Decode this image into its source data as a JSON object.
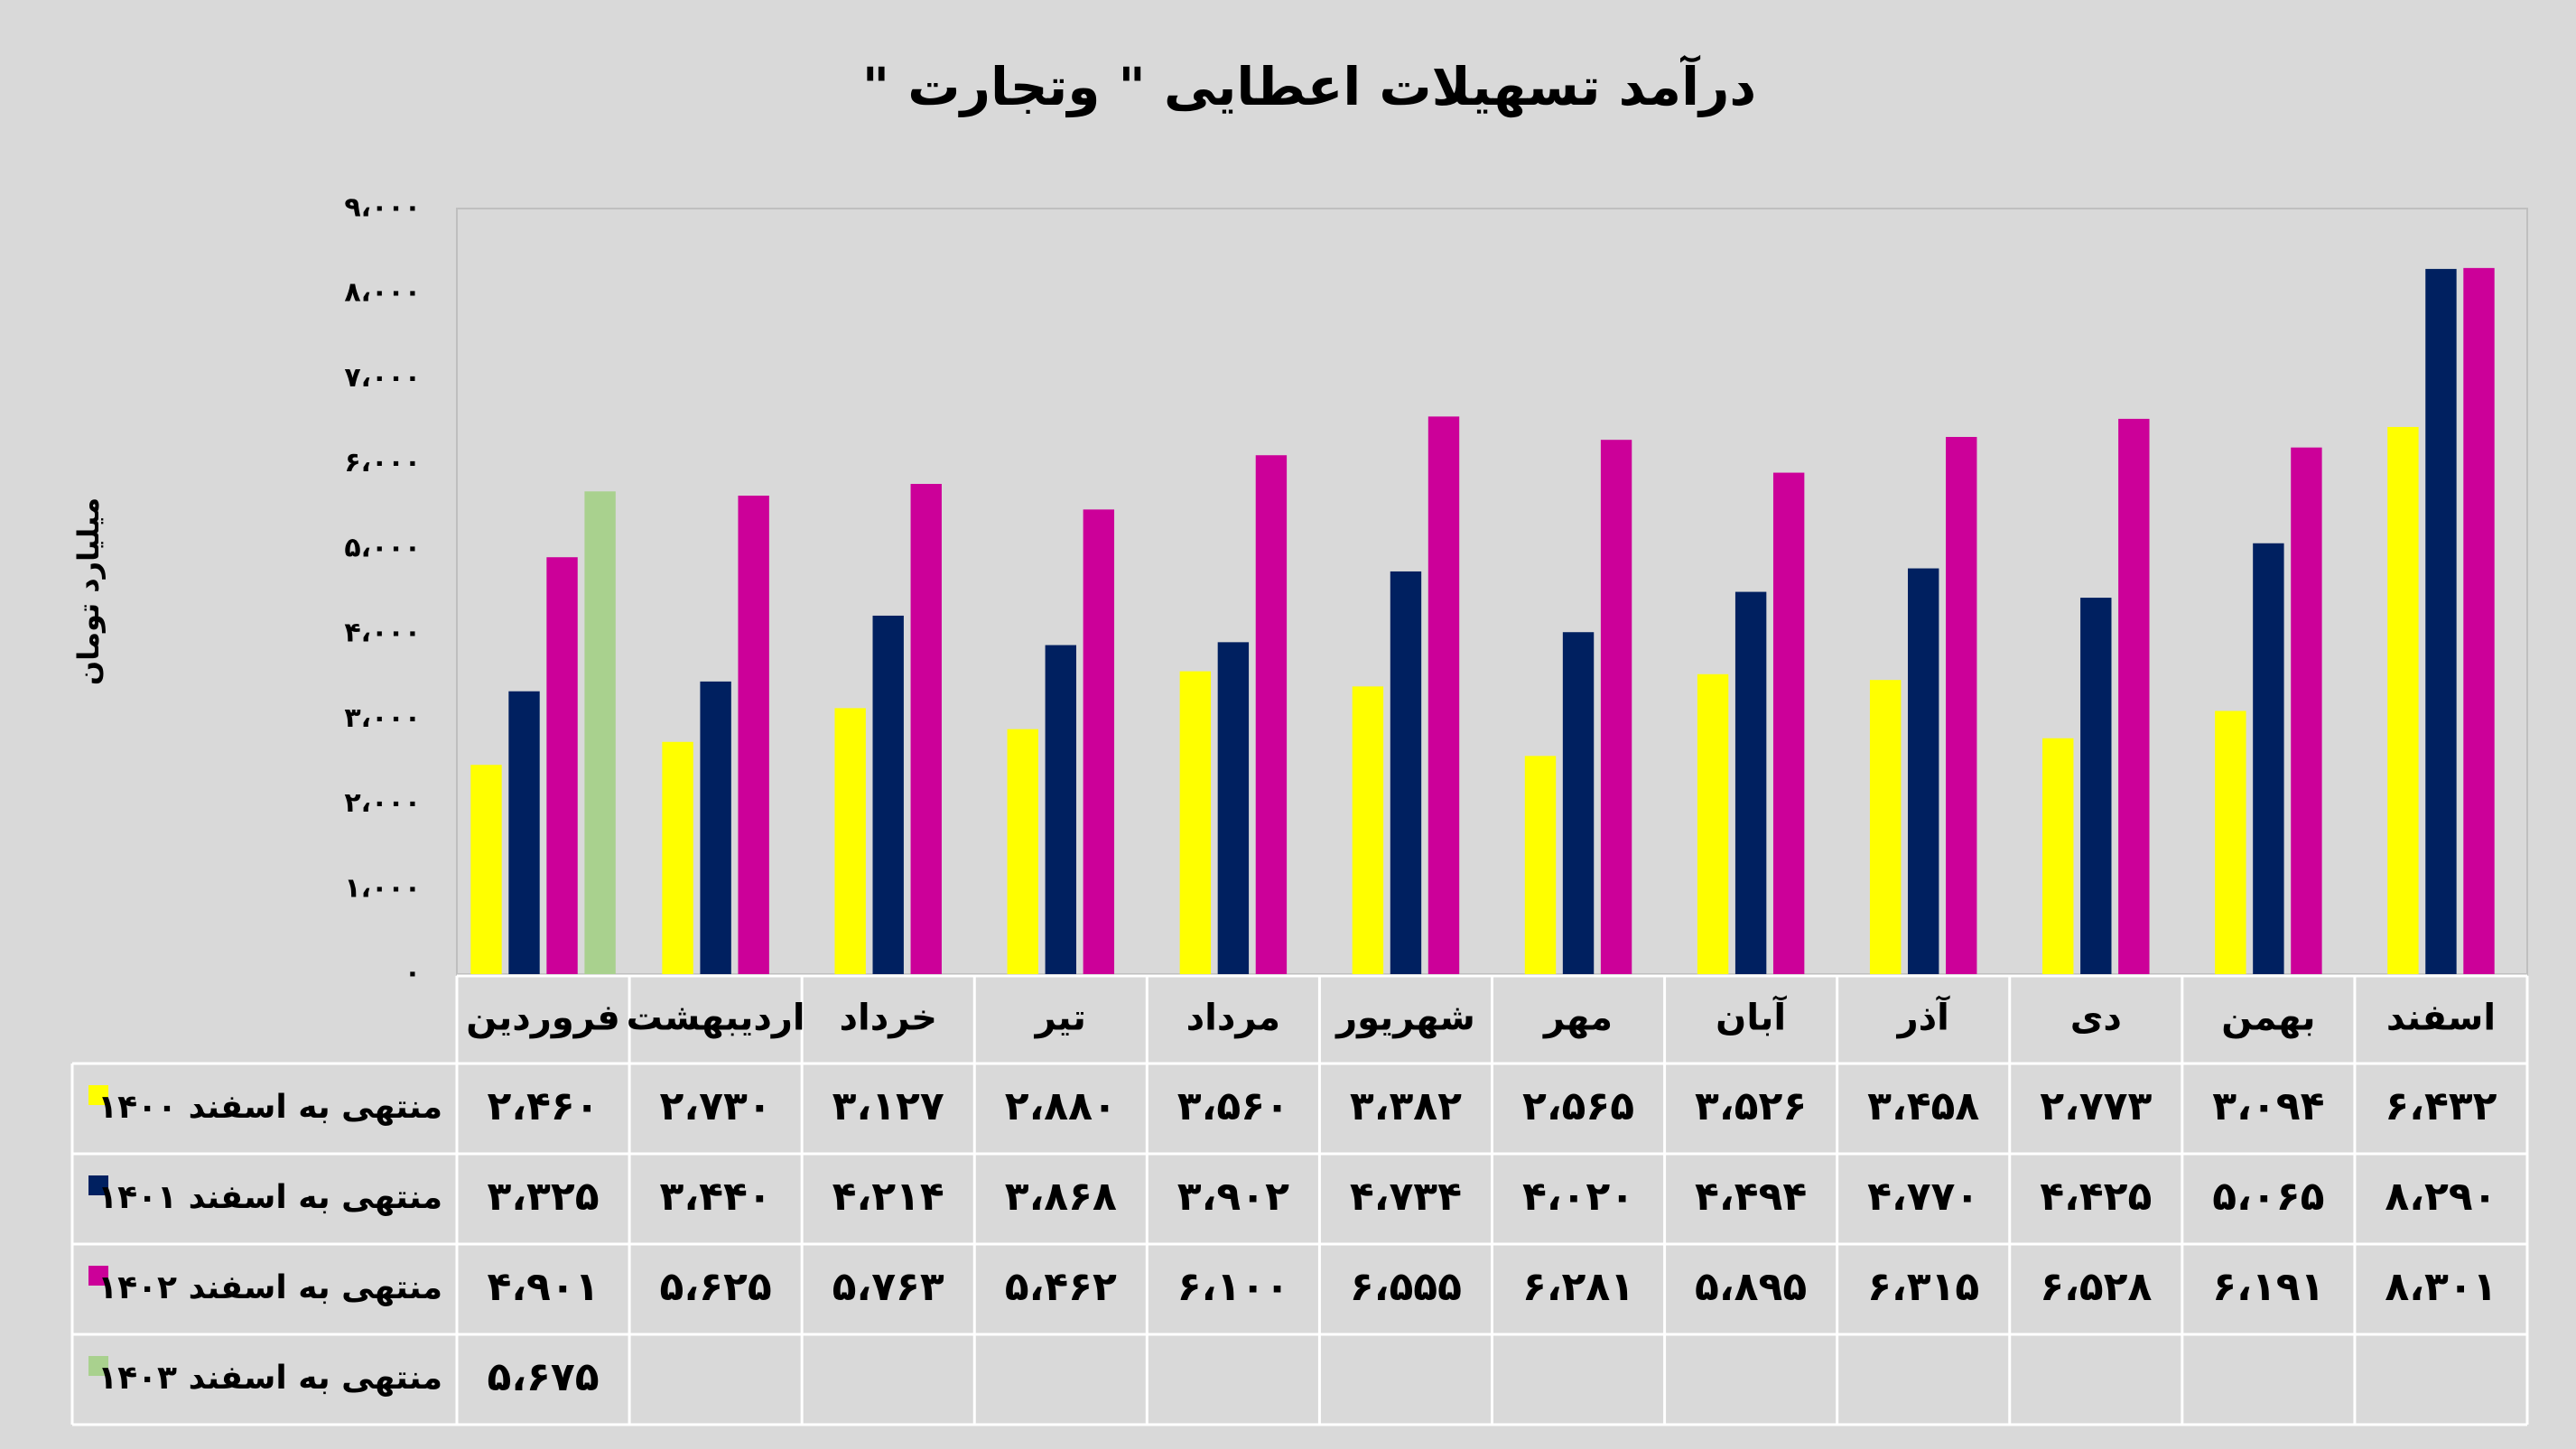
{
  "chart_data": {
    "type": "bar",
    "title": "درآمد تسهیلات اعطایی \" وتجارت \"",
    "y_label": "میلیارد تومان",
    "categories": [
      "فروردین",
      "اردیبهشت",
      "خرداد",
      "تیر",
      "مرداد",
      "شهریور",
      "مهر",
      "آبان",
      "آذر",
      "دی",
      "بهمن",
      "اسفند"
    ],
    "series": [
      {
        "name": "منتهی به اسفند ۱۴۰۰",
        "color": "#ffff00",
        "values": [
          2460,
          2730,
          3127,
          2880,
          3560,
          3382,
          2565,
          3526,
          3458,
          2773,
          3094,
          6432
        ],
        "value_labels": [
          "۲،۴۶۰",
          "۲،۷۳۰",
          "۳،۱۲۷",
          "۲،۸۸۰",
          "۳،۵۶۰",
          "۳،۳۸۲",
          "۲،۵۶۵",
          "۳،۵۲۶",
          "۳،۴۵۸",
          "۲،۷۷۳",
          "۳،۰۹۴",
          "۶،۴۳۲"
        ]
      },
      {
        "name": "منتهی به اسفند ۱۴۰۱",
        "color": "#002060",
        "values": [
          3325,
          3440,
          4214,
          3868,
          3902,
          4734,
          4020,
          4494,
          4770,
          4425,
          5065,
          8290
        ],
        "value_labels": [
          "۳،۳۲۵",
          "۳،۴۴۰",
          "۴،۲۱۴",
          "۳،۸۶۸",
          "۳،۹۰۲",
          "۴،۷۳۴",
          "۴،۰۲۰",
          "۴،۴۹۴",
          "۴،۷۷۰",
          "۴،۴۲۵",
          "۵،۰۶۵",
          "۸،۲۹۰"
        ]
      },
      {
        "name": "منتهی به اسفند ۱۴۰۲",
        "color": "#cc0099",
        "values": [
          4901,
          5625,
          5763,
          5462,
          6100,
          6555,
          6281,
          5895,
          6315,
          6528,
          6191,
          8301
        ],
        "value_labels": [
          "۴،۹۰۱",
          "۵،۶۲۵",
          "۵،۷۶۳",
          "۵،۴۶۲",
          "۶،۱۰۰",
          "۶،۵۵۵",
          "۶،۲۸۱",
          "۵،۸۹۵",
          "۶،۳۱۵",
          "۶،۵۲۸",
          "۶،۱۹۱",
          "۸،۳۰۱"
        ]
      },
      {
        "name": "منتهی به اسفند ۱۴۰۳",
        "color": "#a9d18e",
        "values": [
          5675,
          null,
          null,
          null,
          null,
          null,
          null,
          null,
          null,
          null,
          null,
          null
        ],
        "value_labels": [
          "۵،۶۷۵",
          null,
          null,
          null,
          null,
          null,
          null,
          null,
          null,
          null,
          null,
          null
        ]
      }
    ],
    "ylim": [
      0,
      9000
    ],
    "yticks": [
      {
        "value": 0,
        "label": "۰"
      },
      {
        "value": 1000,
        "label": "۱،۰۰۰"
      },
      {
        "value": 2000,
        "label": "۲،۰۰۰"
      },
      {
        "value": 3000,
        "label": "۳،۰۰۰"
      },
      {
        "value": 4000,
        "label": "۴،۰۰۰"
      },
      {
        "value": 5000,
        "label": "۵،۰۰۰"
      },
      {
        "value": 6000,
        "label": "۶،۰۰۰"
      },
      {
        "value": 7000,
        "label": "۷،۰۰۰"
      },
      {
        "value": 8000,
        "label": "۸،۰۰۰"
      },
      {
        "value": 9000,
        "label": "۹،۰۰۰"
      }
    ],
    "grid": false
  }
}
